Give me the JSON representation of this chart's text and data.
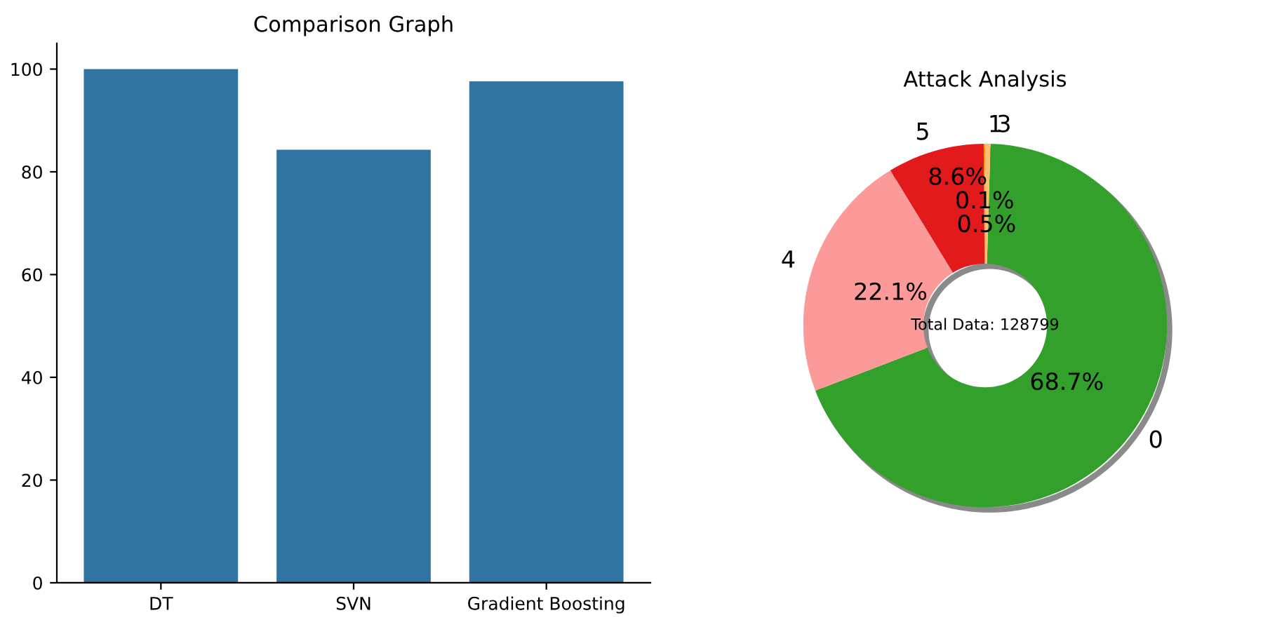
{
  "chart_data": [
    {
      "type": "bar",
      "title": "Comparison Graph",
      "categories": [
        "DT",
        "SVN",
        "Gradient Boosting"
      ],
      "values": [
        100,
        84.3,
        97.6
      ],
      "color": "#3274a1",
      "ylim": [
        0,
        105
      ],
      "yticks": [
        0,
        20,
        40,
        60,
        80,
        100
      ],
      "grid": false
    },
    {
      "type": "donut",
      "title": "Attack Analysis",
      "categories": [
        "0",
        "1",
        "3",
        "5",
        "4"
      ],
      "values": [
        68.7,
        0.5,
        0.1,
        8.6,
        22.1
      ],
      "colors": [
        "#33a02c",
        "#fdbf6f",
        "#ff7f00",
        "#e31a1c",
        "#fb9a99"
      ],
      "value_labels": [
        "68.7%",
        "0.5%",
        "0.1%",
        "8.6%",
        "22.1%"
      ],
      "annotations": [
        "Total Data: 128799"
      ]
    }
  ]
}
